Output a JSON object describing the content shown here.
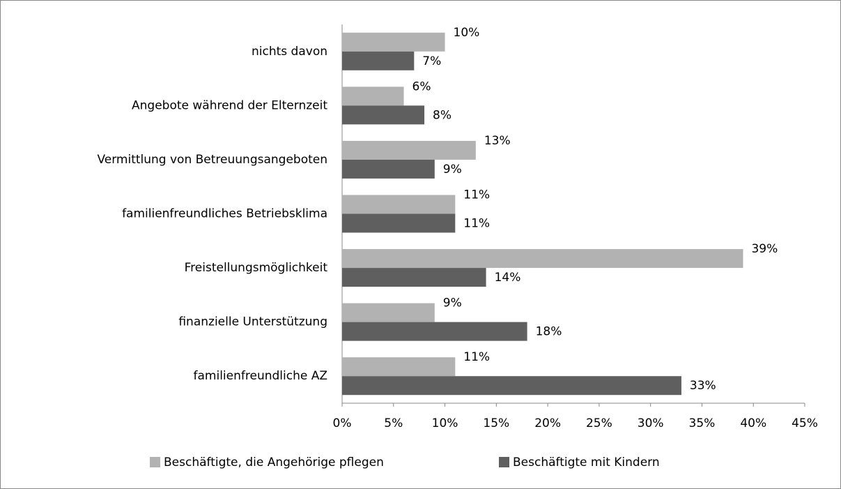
{
  "chart_data": {
    "type": "bar",
    "orientation": "horizontal",
    "categories": [
      "nichts davon",
      "Angebote während der Elternzeit",
      "Vermittlung von Betreuungsangeboten",
      "familienfreundliches Betriebsklima",
      "Freistellungsmöglichkeit",
      "finanzielle Unterstützung",
      "familienfreundliche AZ"
    ],
    "series": [
      {
        "name": "Beschäftigte, die Angehörige pflegen",
        "color": "#b2b2b2",
        "values": [
          10,
          6,
          13,
          11,
          39,
          9,
          11
        ],
        "value_labels": [
          "10%",
          "6%",
          "13%",
          "11%",
          "39%",
          "9%",
          "11%"
        ]
      },
      {
        "name": "Beschäftigte mit Kindern",
        "color": "#5f5f5f",
        "values": [
          7,
          8,
          9,
          11,
          14,
          18,
          33
        ],
        "value_labels": [
          "7%",
          "8%",
          "9%",
          "11%",
          "14%",
          "18%",
          "33%"
        ]
      }
    ],
    "xlim": [
      0,
      45
    ],
    "xticks": [
      {
        "value": 0,
        "label": "0%"
      },
      {
        "value": 5,
        "label": "5%"
      },
      {
        "value": 10,
        "label": "10%"
      },
      {
        "value": 15,
        "label": "15%"
      },
      {
        "value": 20,
        "label": "20%"
      },
      {
        "value": 25,
        "label": "25%"
      },
      {
        "value": 30,
        "label": "30%"
      },
      {
        "value": 35,
        "label": "35%"
      },
      {
        "value": 40,
        "label": "40%"
      },
      {
        "value": 45,
        "label": "45%"
      }
    ],
    "grid": false,
    "legend": "bottom"
  }
}
